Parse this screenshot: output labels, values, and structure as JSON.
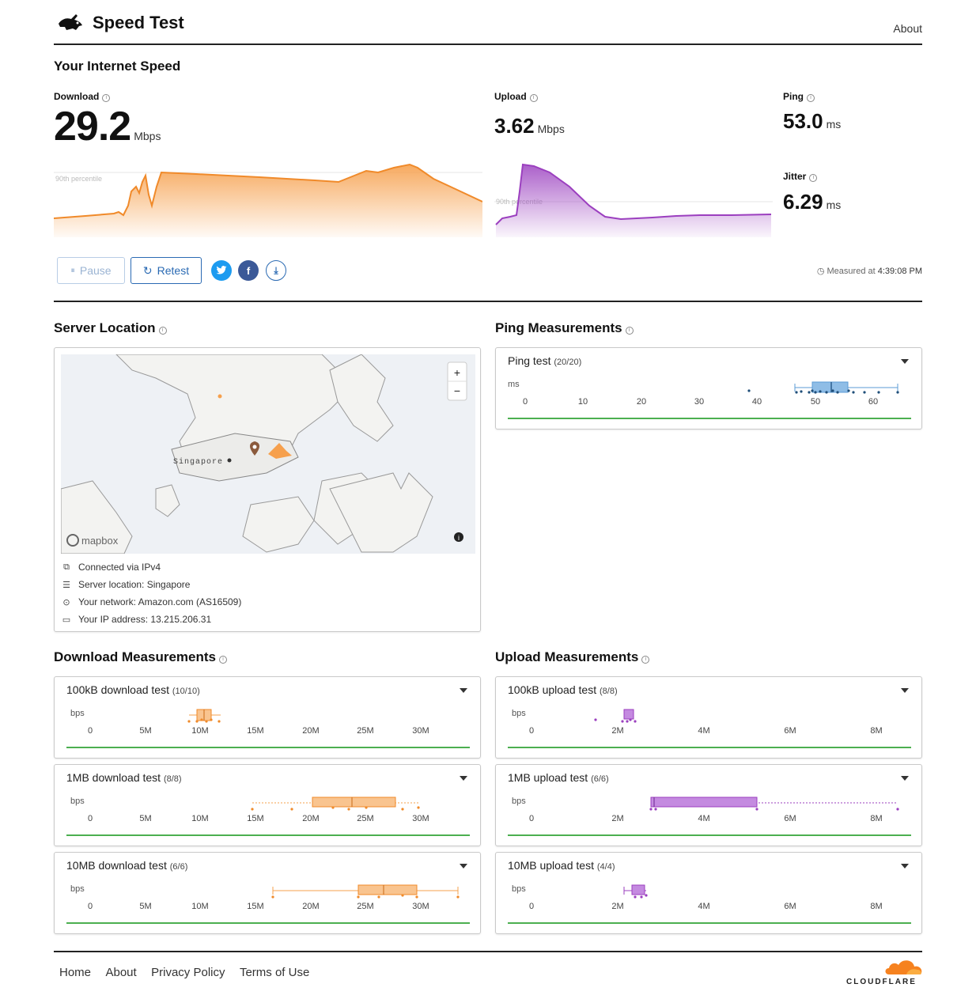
{
  "header": {
    "title": "Speed Test",
    "about": "About"
  },
  "summary": {
    "heading": "Your Internet Speed",
    "download": {
      "label": "Download",
      "value": "29.2",
      "unit": "Mbps",
      "percentile_label": "90th percentile"
    },
    "upload": {
      "label": "Upload",
      "value": "3.62",
      "unit": "Mbps",
      "percentile_label": "90th percentile"
    },
    "ping": {
      "label": "Ping",
      "value": "53.0",
      "unit": "ms"
    },
    "jitter": {
      "label": "Jitter",
      "value": "6.29",
      "unit": "ms"
    },
    "pause_label": "Pause",
    "retest_label": "Retest",
    "measured_prefix": "Measured at",
    "measured_time": "4:39:08 PM"
  },
  "server": {
    "heading": "Server Location",
    "map_label": "Singapore",
    "mapbox_label": "mapbox",
    "zoom_in": "+",
    "zoom_out": "−",
    "rows": [
      {
        "icon": "network-icon",
        "text": "Connected via IPv4"
      },
      {
        "icon": "server-icon",
        "text": "Server location: Singapore"
      },
      {
        "icon": "pin-icon",
        "text": "Your network: Amazon.com (AS16509)"
      },
      {
        "icon": "card-icon",
        "text": "Your IP address: 13.215.206.31"
      }
    ]
  },
  "ping_section": {
    "heading": "Ping Measurements",
    "card": {
      "title": "Ping test",
      "count": "(20/20)",
      "unit": "ms",
      "ticks": [
        "0",
        "10",
        "20",
        "30",
        "40",
        "50",
        "60"
      ]
    }
  },
  "download_section": {
    "heading": "Download Measurements",
    "cards": [
      {
        "title": "100kB download test",
        "count": "(10/10)",
        "unit": "bps",
        "ticks": [
          "0",
          "5M",
          "10M",
          "15M",
          "20M",
          "25M",
          "30M"
        ]
      },
      {
        "title": "1MB download test",
        "count": "(8/8)",
        "unit": "bps",
        "ticks": [
          "0",
          "5M",
          "10M",
          "15M",
          "20M",
          "25M",
          "30M"
        ]
      },
      {
        "title": "10MB download test",
        "count": "(6/6)",
        "unit": "bps",
        "ticks": [
          "0",
          "5M",
          "10M",
          "15M",
          "20M",
          "25M",
          "30M"
        ]
      }
    ]
  },
  "upload_section": {
    "heading": "Upload Measurements",
    "cards": [
      {
        "title": "100kB upload test",
        "count": "(8/8)",
        "unit": "bps",
        "ticks": [
          "0",
          "2M",
          "4M",
          "6M",
          "8M"
        ]
      },
      {
        "title": "1MB upload test",
        "count": "(6/6)",
        "unit": "bps",
        "ticks": [
          "0",
          "2M",
          "4M",
          "6M",
          "8M"
        ]
      },
      {
        "title": "10MB upload test",
        "count": "(4/4)",
        "unit": "bps",
        "ticks": [
          "0",
          "2M",
          "4M",
          "6M",
          "8M"
        ]
      }
    ]
  },
  "footer": {
    "links": [
      "Home",
      "About",
      "Privacy Policy",
      "Terms of Use"
    ],
    "brand": "CLOUDFLARE"
  },
  "colors": {
    "download": "#f6a04d",
    "upload": "#a24ec4",
    "ping": "#5b9bd5",
    "accent": "#2a6ab3",
    "green": "#4caf50"
  }
}
